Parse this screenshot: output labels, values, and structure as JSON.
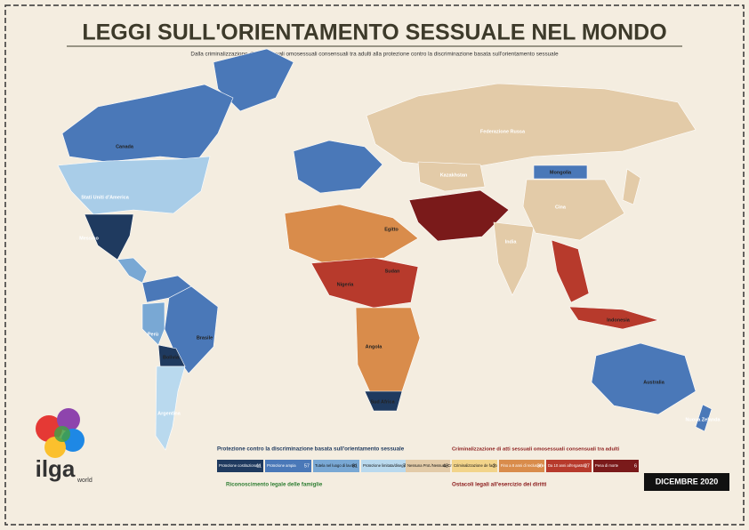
{
  "header": {
    "title": "LEGGI SULL'ORIENTAMENTO SESSUALE NEL MONDO",
    "subtitle": "Dalla criminalizzazione di atti sessuali omosessuali consensuali tra adulti alla protezione contro la discriminazione basata sull'orientamento sessuale"
  },
  "countries": [
    "Canada",
    "Stati Uniti d'America",
    "Messico",
    "Brasile",
    "Argentina",
    "Bolivia",
    "Perù",
    "Federazione Russa",
    "Cina",
    "Mongolia",
    "India",
    "Australia",
    "Nuova Zelanda",
    "Indonesia",
    "Sud Africa",
    "Angola",
    "Egitto",
    "Sudan",
    "Nigeria",
    "Kazakhstan"
  ],
  "legend": {
    "protection": {
      "title": "Protezione contro la discriminazione basata sull'orientamento sessuale",
      "items": [
        {
          "label": "Protezione costituzionale",
          "count": 11
        },
        {
          "label": "Protezione ampia",
          "count": 57
        },
        {
          "label": "Tutela nel luogo di lavoro",
          "count": 81
        },
        {
          "label": "Protezione limitata/diseguale",
          "count": 7
        }
      ]
    },
    "neutral": {
      "label": "Nessuna Prot./Nessuna Crim.",
      "count": 43
    },
    "criminalization": {
      "title": "Criminalizzazione di atti sessuali omosessuali consensuali tra adulti",
      "items": [
        {
          "label": "Criminalizzazione de facto",
          "count": 2
        },
        {
          "label": "Fino a 8 anni di reclusione",
          "count": 30
        },
        {
          "label": "Da 10 anni all'ergastolo",
          "count": 27
        },
        {
          "label": "Pena di morte",
          "count": 6
        }
      ]
    },
    "recognition": {
      "title": "Riconoscimento legale delle famiglie"
    },
    "obstacles": {
      "title": "Ostacoli legali all'esercizio dei diritti"
    }
  },
  "date": "DICEMBRE 2020",
  "logo": {
    "name": "ilga",
    "sub": "world"
  }
}
